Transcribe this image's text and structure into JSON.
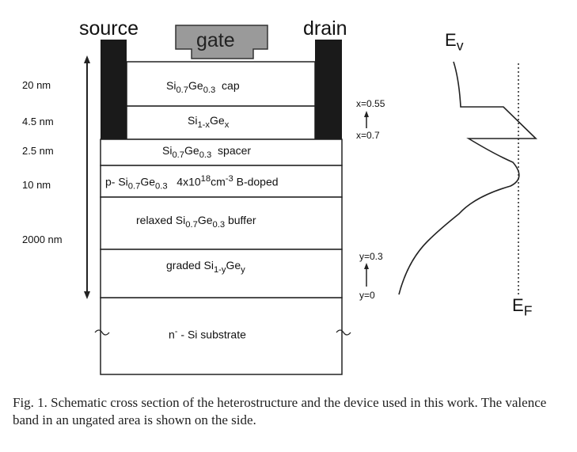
{
  "labels": {
    "source": "source",
    "drain": "drain",
    "gate": "gate",
    "ev": "E",
    "ev_sub": "v",
    "ef": "E",
    "ef_sub": "F"
  },
  "thicknesses": [
    "20 nm",
    "4.5 nm",
    "2.5 nm",
    "10 nm",
    "2000 nm"
  ],
  "layers": {
    "cap": {
      "si": "Si",
      "si_sub": "0.7",
      "ge": "Ge",
      "ge_sub": "0.3",
      "suffix": "cap"
    },
    "channel": {
      "si": "Si",
      "si_sub": "1-x",
      "ge": "Ge",
      "ge_sub": "x"
    },
    "spacer": {
      "si": "Si",
      "si_sub": "0.7",
      "ge": "Ge",
      "ge_sub": "0.3",
      "suffix": "spacer"
    },
    "doped": {
      "prefix": "p- Si",
      "si_sub": "0.7",
      "ge": "Ge",
      "ge_sub": "0.3",
      "conc": "4x10",
      "conc_sup": "18",
      "unit": "cm",
      "unit_sup": "-3",
      "suffix": "B-doped"
    },
    "buffer": {
      "prefix": "relaxed Si",
      "si_sub": "0.7",
      "ge": "Ge",
      "ge_sub": "0.3",
      "suffix": "buffer"
    },
    "graded": {
      "prefix": "graded Si",
      "si_sub": "1-y",
      "ge": "Ge",
      "ge_sub": "y"
    },
    "substrate": {
      "n": "n",
      "n_sup": "-",
      "rest": " - Si substrate"
    }
  },
  "annotations": {
    "x_top": "x=0.55",
    "x_bottom": "x=0.7",
    "y_top": "y=0.3",
    "y_bottom": "y=0"
  },
  "caption": "Fig. 1.   Schematic cross section of the heterostructure and the device used in this work. The valence band in an ungated area is shown on the side."
}
